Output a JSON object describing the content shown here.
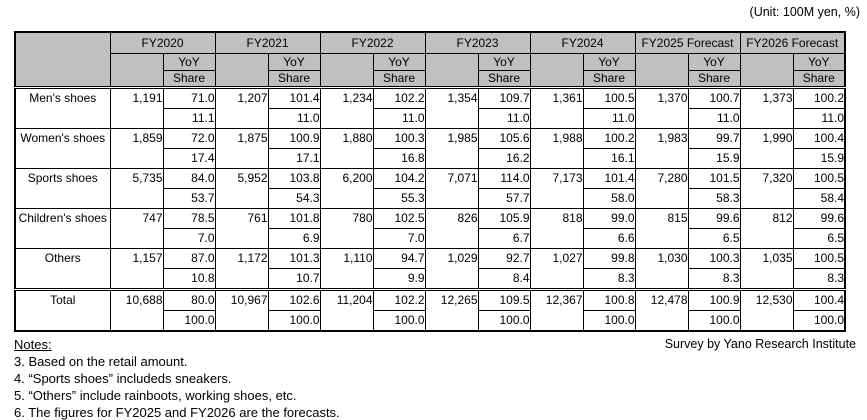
{
  "unit_label": "(Unit: 100M yen, %)",
  "survey_credit": "Survey by Yano Research Institute",
  "notes": {
    "title": "Notes:",
    "items": [
      "3. Based on the retail amount.",
      "4. “Sports shoes” includeds sneakers.",
      "5. “Others” include rainboots, working shoes, etc.",
      "6. The figures for FY2025 and FY2026 are the forecasts."
    ]
  },
  "colors": {
    "header_bg": "#c0c0c0",
    "border": "#000000",
    "background": "#ffffff"
  },
  "chart_data": {
    "type": "table",
    "unit": "100M yen, %",
    "columns": [
      "FY2020",
      "FY2021",
      "FY2022",
      "FY2023",
      "FY2024",
      "FY2025 Forecast",
      "FY2026 Forecast"
    ],
    "sub_headers": {
      "yoy": "YoY",
      "share": "Share"
    },
    "rows": [
      {
        "label": "Men's shoes",
        "values": [
          "1,191",
          "1,207",
          "1,234",
          "1,354",
          "1,361",
          "1,370",
          "1,373"
        ],
        "yoy": [
          "71.0",
          "101.4",
          "102.2",
          "109.7",
          "100.5",
          "100.7",
          "100.2"
        ],
        "share": [
          "11.1",
          "11.0",
          "11.0",
          "11.0",
          "11.0",
          "11.0",
          "11.0"
        ]
      },
      {
        "label": "Women's shoes",
        "values": [
          "1,859",
          "1,875",
          "1,880",
          "1,985",
          "1,988",
          "1,983",
          "1,990"
        ],
        "yoy": [
          "72.0",
          "100.9",
          "100.3",
          "105.6",
          "100.2",
          "99.7",
          "100.4"
        ],
        "share": [
          "17.4",
          "17.1",
          "16.8",
          "16.2",
          "16.1",
          "15.9",
          "15.9"
        ]
      },
      {
        "label": "Sports shoes",
        "values": [
          "5,735",
          "5,952",
          "6,200",
          "7,071",
          "7,173",
          "7,280",
          "7,320"
        ],
        "yoy": [
          "84.0",
          "103.8",
          "104.2",
          "114.0",
          "101.4",
          "101.5",
          "100.5"
        ],
        "share": [
          "53.7",
          "54.3",
          "55.3",
          "57.7",
          "58.0",
          "58.3",
          "58.4"
        ]
      },
      {
        "label": "Children's shoes",
        "values": [
          "747",
          "761",
          "780",
          "826",
          "818",
          "815",
          "812"
        ],
        "yoy": [
          "78.5",
          "101.8",
          "102.5",
          "105.9",
          "99.0",
          "99.6",
          "99.6"
        ],
        "share": [
          "7.0",
          "6.9",
          "7.0",
          "6.7",
          "6.6",
          "6.5",
          "6.5"
        ]
      },
      {
        "label": "Others",
        "values": [
          "1,157",
          "1,172",
          "1,110",
          "1,029",
          "1,027",
          "1,030",
          "1,035"
        ],
        "yoy": [
          "87.0",
          "101.3",
          "94.7",
          "92.7",
          "99.8",
          "100.3",
          "100.5"
        ],
        "share": [
          "10.8",
          "10.7",
          "9.9",
          "8.4",
          "8.3",
          "8.3",
          "8.3"
        ]
      },
      {
        "label": "Total",
        "is_total": true,
        "values": [
          "10,688",
          "10,967",
          "11,204",
          "12,265",
          "12,367",
          "12,478",
          "12,530"
        ],
        "yoy": [
          "80.0",
          "102.6",
          "102.2",
          "109.5",
          "100.8",
          "100.9",
          "100.4"
        ],
        "share": [
          "100.0",
          "100.0",
          "100.0",
          "100.0",
          "100.0",
          "100.0",
          "100.0"
        ]
      }
    ]
  }
}
